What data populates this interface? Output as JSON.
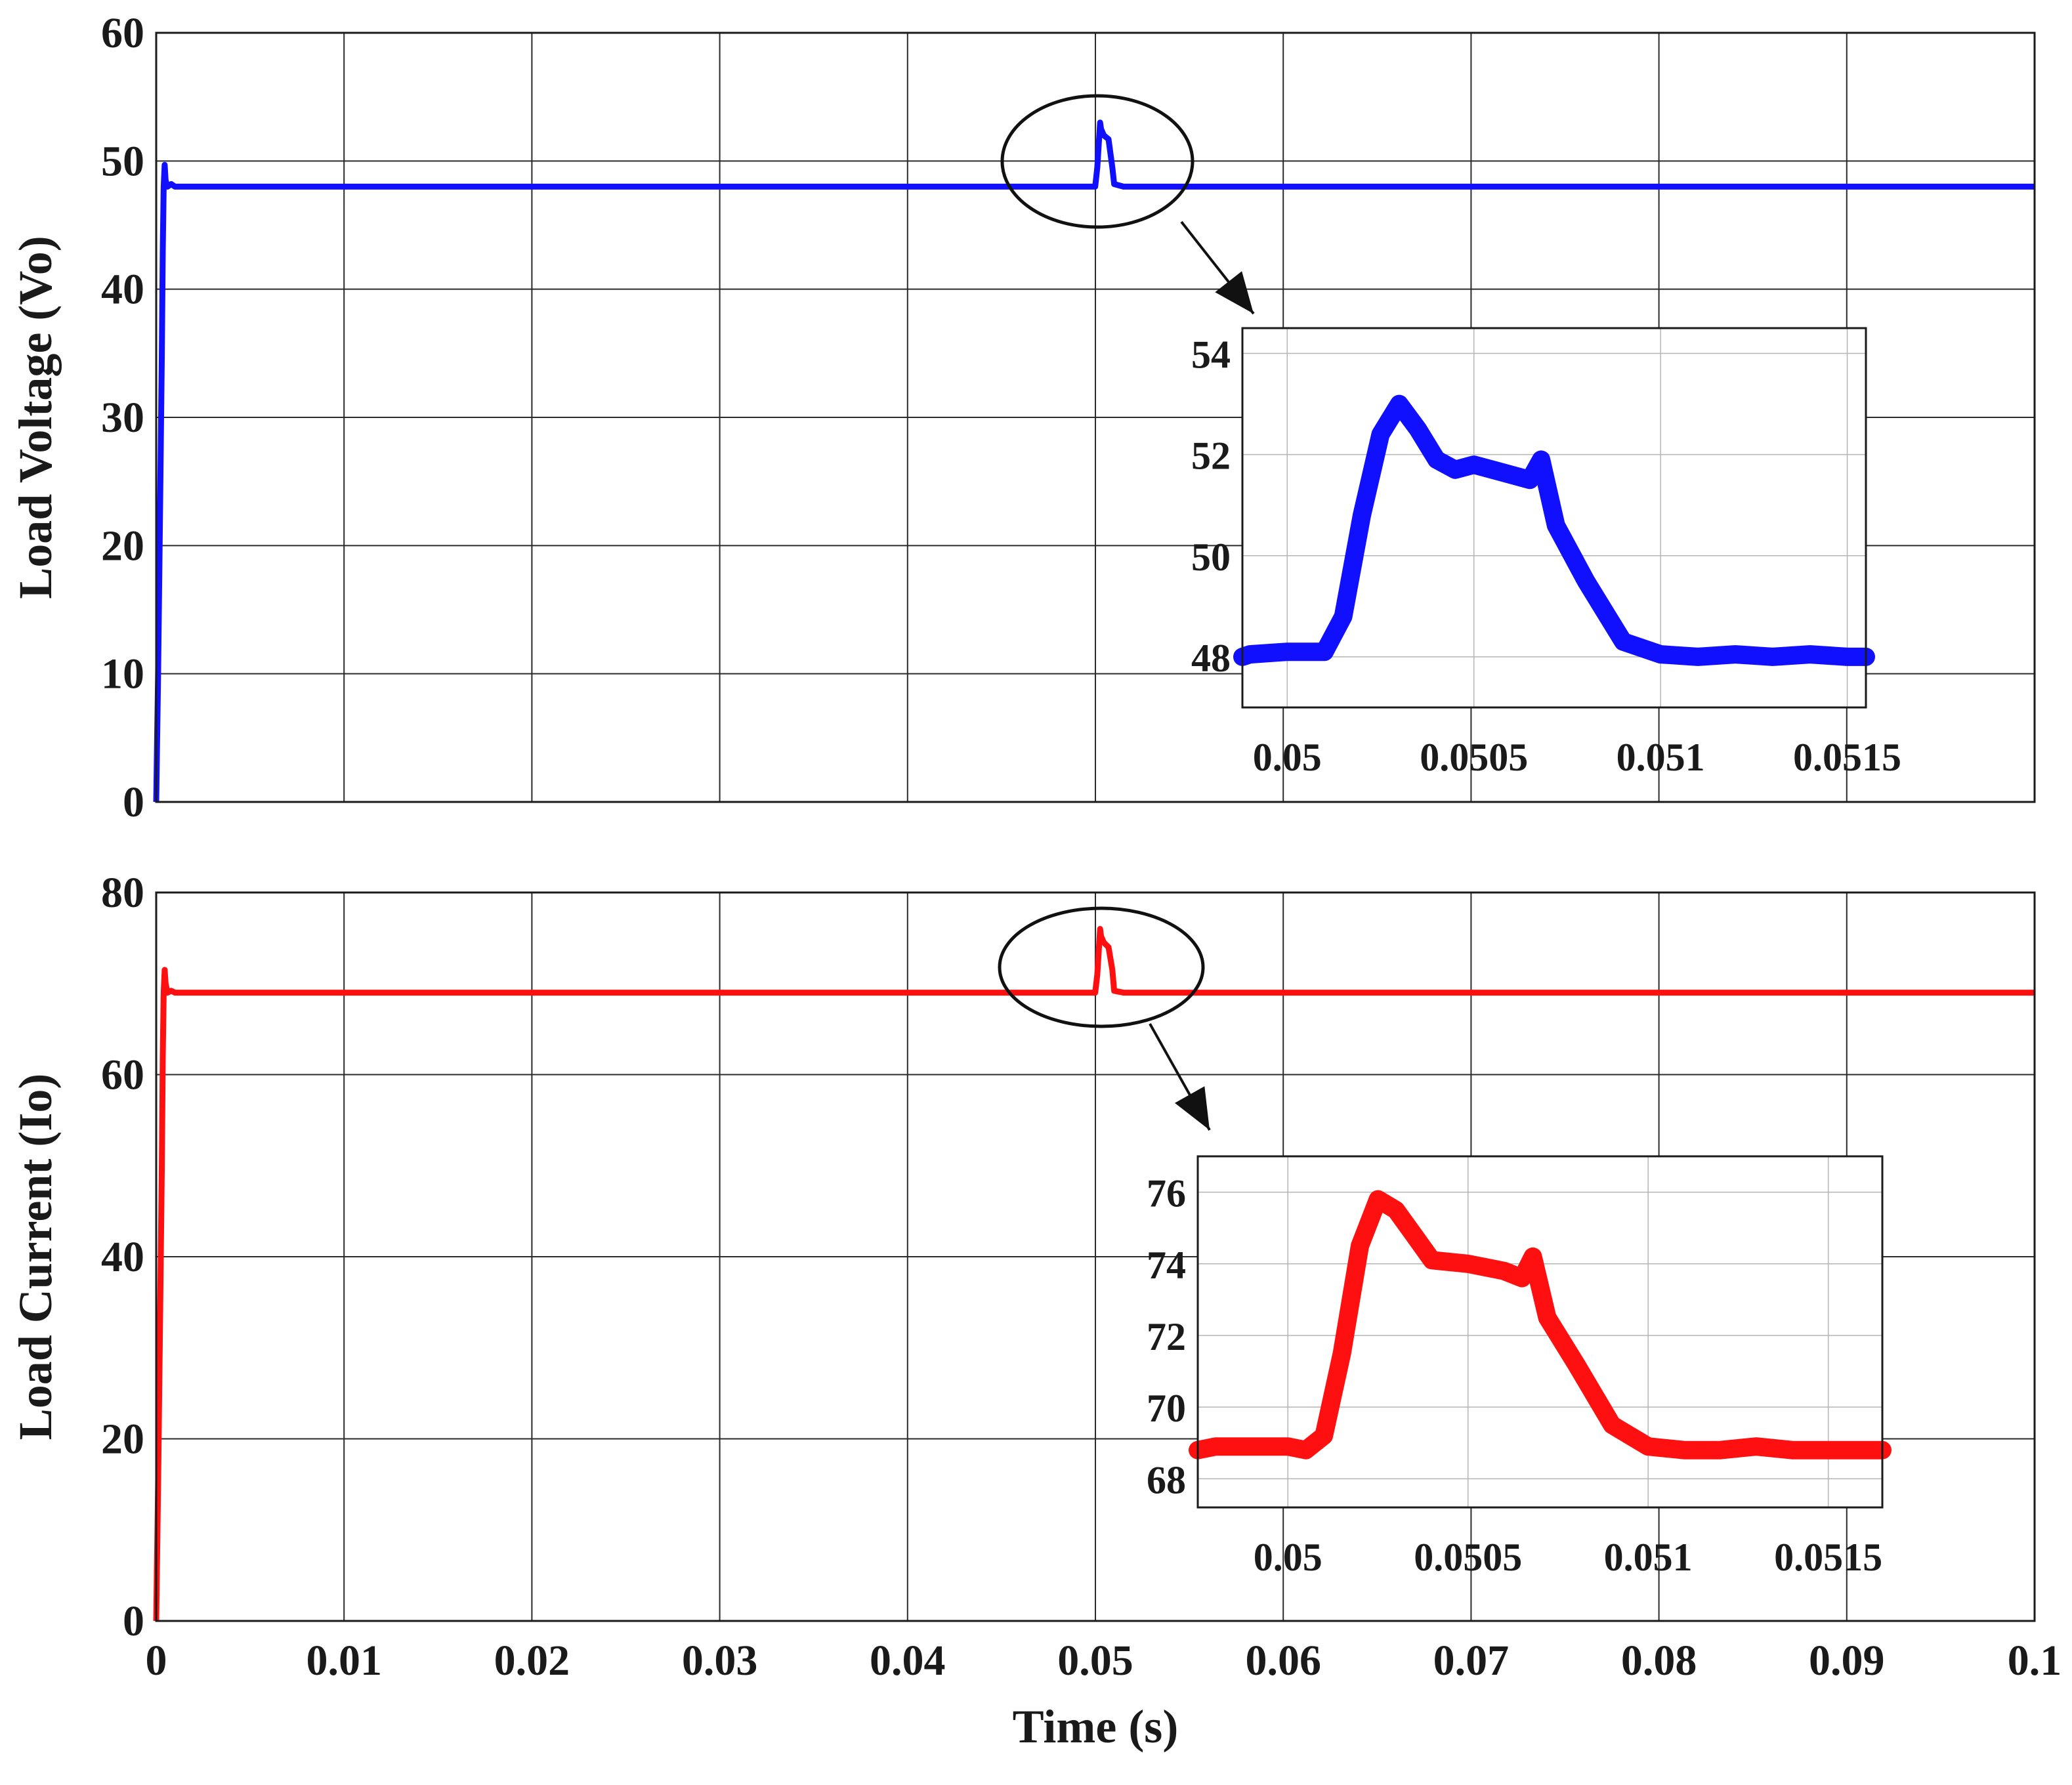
{
  "chart_data": [
    {
      "type": "line",
      "ylabel": "Load Voltage (Vo)",
      "xlabel": "",
      "xlim": [
        0,
        0.1
      ],
      "ylim": [
        0,
        60
      ],
      "xticks": [
        0,
        0.01,
        0.02,
        0.03,
        0.04,
        0.05,
        0.06,
        0.07,
        0.08,
        0.09,
        0.1
      ],
      "xtick_labels": [
        "",
        "",
        "",
        "",
        "",
        "",
        "",
        "",
        "",
        "",
        ""
      ],
      "yticks": [
        0,
        10,
        20,
        30,
        40,
        50,
        60
      ],
      "ytick_labels": [
        "0",
        "10",
        "20",
        "30",
        "40",
        "50",
        "60"
      ],
      "grid": true,
      "color": "#1010ff",
      "series": [
        {
          "x": [
            0,
            0.0001,
            0.0002,
            0.0003,
            0.00035,
            0.0004,
            0.00045,
            0.0005,
            0.0006,
            0.0008,
            0.001,
            0.01,
            0.03,
            0.04999,
            0.0501,
            0.05025,
            0.0503,
            0.05045,
            0.0507,
            0.0509,
            0.051,
            0.0515,
            0.06,
            0.08,
            0.1
          ],
          "y": [
            0,
            10,
            22,
            35,
            43,
            48,
            49.7,
            48.5,
            48,
            48.2,
            48,
            48,
            48,
            48,
            49.5,
            53,
            52.5,
            52,
            51.7,
            49.5,
            48.2,
            48,
            48,
            48,
            48
          ]
        }
      ],
      "inset": {
        "xlim": [
          0.04988,
          0.05155
        ],
        "ylim": [
          47,
          54.5
        ],
        "xticks": [
          0.05,
          0.0505,
          0.051,
          0.0515
        ],
        "xtick_labels": [
          "0.05",
          "0.0505",
          "0.051",
          "0.0515"
        ],
        "yticks": [
          48,
          50,
          52,
          54
        ],
        "ytick_labels": [
          "48",
          "50",
          "52",
          "54"
        ],
        "grid": true,
        "x": [
          0.04988,
          0.0499,
          0.05,
          0.0501,
          0.05015,
          0.0502,
          0.05025,
          0.0503,
          0.05035,
          0.0504,
          0.05045,
          0.0505,
          0.0506,
          0.05065,
          0.05068,
          0.05072,
          0.0508,
          0.0509,
          0.051,
          0.0511,
          0.0512,
          0.0513,
          0.0514,
          0.0515,
          0.05155
        ],
        "y": [
          48,
          48.05,
          48.1,
          48.1,
          48.8,
          50.8,
          52.4,
          53,
          52.5,
          51.9,
          51.7,
          51.8,
          51.6,
          51.5,
          51.9,
          50.6,
          49.5,
          48.3,
          48.05,
          48,
          48.05,
          48,
          48.05,
          48,
          48
        ]
      }
    },
    {
      "type": "line",
      "ylabel": "Load Current (Io)",
      "xlabel": "Time (s)",
      "xlim": [
        0,
        0.1
      ],
      "ylim": [
        0,
        80
      ],
      "xticks": [
        0,
        0.01,
        0.02,
        0.03,
        0.04,
        0.05,
        0.06,
        0.07,
        0.08,
        0.09,
        0.1
      ],
      "xtick_labels": [
        "0",
        "0.01",
        "0.02",
        "0.03",
        "0.04",
        "0.05",
        "0.06",
        "0.07",
        "0.08",
        "0.09",
        "0.1"
      ],
      "yticks": [
        0,
        20,
        40,
        60,
        80
      ],
      "ytick_labels": [
        "0",
        "20",
        "40",
        "60",
        "80"
      ],
      "grid": true,
      "color": "#ff1010",
      "series": [
        {
          "x": [
            0,
            0.0001,
            0.0002,
            0.0003,
            0.00035,
            0.0004,
            0.00045,
            0.0005,
            0.0006,
            0.0008,
            0.001,
            0.01,
            0.03,
            0.04999,
            0.0501,
            0.05025,
            0.0503,
            0.05045,
            0.0507,
            0.0509,
            0.051,
            0.0515,
            0.06,
            0.08,
            0.1
          ],
          "y": [
            0,
            15,
            32,
            50,
            62,
            69,
            71.5,
            70,
            69,
            69.2,
            69,
            69,
            69,
            69,
            71,
            76,
            75.2,
            74.5,
            74,
            71.5,
            69.2,
            69,
            69,
            69,
            69
          ]
        }
      ],
      "inset": {
        "xlim": [
          0.04975,
          0.05165
        ],
        "ylim": [
          67.2,
          77
        ],
        "xticks": [
          0.05,
          0.0505,
          0.051,
          0.0515
        ],
        "xtick_labels": [
          "0.05",
          "0.0505",
          "0.051",
          "0.0515"
        ],
        "yticks": [
          68,
          70,
          72,
          74,
          76
        ],
        "ytick_labels": [
          "68",
          "70",
          "72",
          "74",
          "76"
        ],
        "grid": true,
        "x": [
          0.04975,
          0.0498,
          0.0499,
          0.05,
          0.05005,
          0.0501,
          0.05015,
          0.0502,
          0.05025,
          0.0503,
          0.05035,
          0.0504,
          0.0505,
          0.0506,
          0.05065,
          0.05068,
          0.05072,
          0.0508,
          0.0509,
          0.051,
          0.0511,
          0.0512,
          0.0513,
          0.0514,
          0.0515,
          0.05165
        ],
        "y": [
          68.8,
          68.9,
          68.9,
          68.9,
          68.8,
          69.2,
          71.5,
          74.5,
          75.8,
          75.5,
          74.8,
          74.1,
          74.0,
          73.8,
          73.6,
          74.2,
          72.5,
          71.2,
          69.5,
          68.9,
          68.8,
          68.8,
          68.9,
          68.8,
          68.8,
          68.8
        ]
      }
    }
  ]
}
